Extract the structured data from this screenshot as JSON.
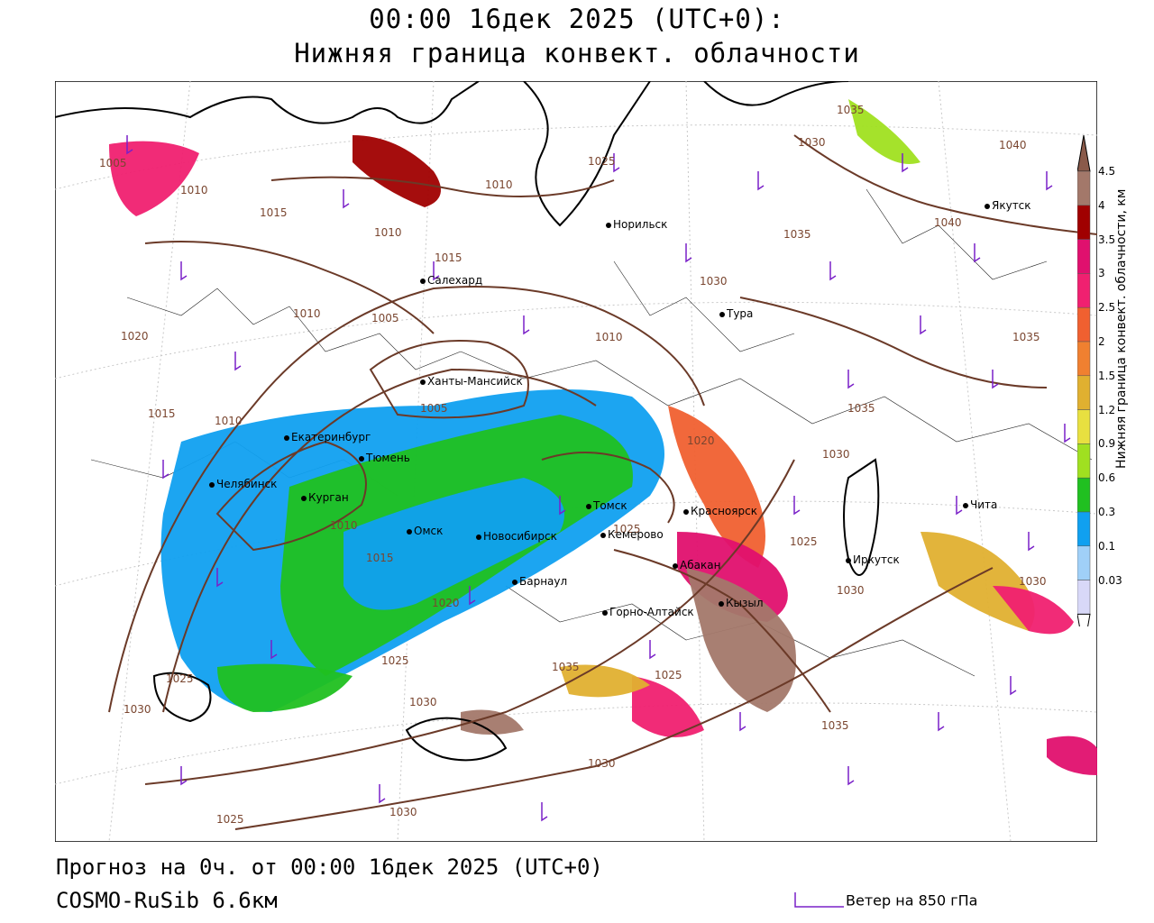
{
  "header": {
    "line1": "00:00 16дек 2025 (UTC+0):",
    "line2": "Нижняя граница конвект. облачности"
  },
  "footer": {
    "forecast": "Прогноз на 0ч. от 00:00 16дек 2025 (UTC+0)",
    "model": "COSMO-RuSib 6.6км",
    "wind_label": "Ветер на 850 гПа"
  },
  "legend": {
    "title": "Нижняя граница конвект. облачности, км",
    "ticks": [
      "4.5",
      "4",
      "3.5",
      "3",
      "2.5",
      "2",
      "1.5",
      "1.2",
      "0.9",
      "0.6",
      "0.3",
      "0.1",
      "0.03"
    ],
    "colors": [
      "#a3786a",
      "#a00000",
      "#e0106e",
      "#f02070",
      "#f06030",
      "#f08030",
      "#e0b030",
      "#e8e040",
      "#a0e020",
      "#20c020",
      "#10a0f0",
      "#a0d0f8",
      "#d8d8f8"
    ]
  },
  "cities": [
    {
      "name": "Норильск"
    },
    {
      "name": "Якутск"
    },
    {
      "name": "Салехард"
    },
    {
      "name": "Тура"
    },
    {
      "name": "Ханты-Мансийск"
    },
    {
      "name": "Екатеринбург"
    },
    {
      "name": "Тюмень"
    },
    {
      "name": "Челябинск"
    },
    {
      "name": "Курган"
    },
    {
      "name": "Омск"
    },
    {
      "name": "Новосибирск"
    },
    {
      "name": "Томск"
    },
    {
      "name": "Кемерово"
    },
    {
      "name": "Красноярск"
    },
    {
      "name": "Абакан"
    },
    {
      "name": "Кызыл"
    },
    {
      "name": "Барнаул"
    },
    {
      "name": "Горно-Алтайск"
    },
    {
      "name": "Иркутск"
    },
    {
      "name": "Чита"
    }
  ],
  "isobars": [
    "1005",
    "1010",
    "1015",
    "1010",
    "1015",
    "1010",
    "1015",
    "1025",
    "1030",
    "1035",
    "1040",
    "1035",
    "1040",
    "1030",
    "1035",
    "1010",
    "1010",
    "1020",
    "1015",
    "1010",
    "1005",
    "1005",
    "1010",
    "1015",
    "1020",
    "1025",
    "1030",
    "1025",
    "1020",
    "1025",
    "1025",
    "1030",
    "1035",
    "1030",
    "1030",
    "1035",
    "1025",
    "1030",
    "1035",
    "1030",
    "1025"
  ]
}
